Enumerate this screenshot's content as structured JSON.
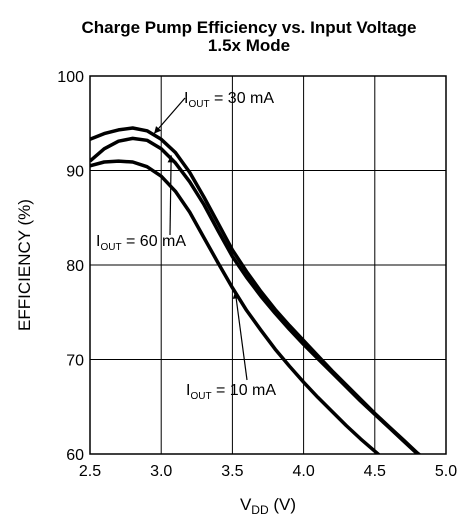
{
  "chart_data": {
    "type": "line",
    "title": "Charge Pump Efficiency vs. Input Voltage",
    "subtitle": "1.5x Mode",
    "xlabel": {
      "main": "V",
      "sub": "DD",
      "unit": " (V)"
    },
    "ylabel": "EFFICIENCY (%)",
    "xlim": [
      2.5,
      5.0
    ],
    "ylim": [
      60,
      100
    ],
    "xticks": [
      "2.5",
      "3.0",
      "3.5",
      "4.0",
      "4.5",
      "5.0"
    ],
    "yticks": [
      "60",
      "70",
      "80",
      "90",
      "100"
    ],
    "xtick_values": [
      2.5,
      3.0,
      3.5,
      4.0,
      4.5,
      5.0
    ],
    "ytick_values": [
      60,
      70,
      80,
      90,
      100
    ],
    "grid": true,
    "series": [
      {
        "name": "I_OUT = 30 mA",
        "x": [
          2.5,
          2.6,
          2.7,
          2.8,
          2.9,
          3.0,
          3.1,
          3.2,
          3.3,
          3.4,
          3.5,
          3.6,
          3.7,
          3.8,
          3.9,
          4.0,
          4.1,
          4.2,
          4.3,
          4.4,
          4.5,
          4.6,
          4.7,
          4.8,
          4.85
        ],
        "y": [
          93.3,
          93.9,
          94.3,
          94.5,
          94.2,
          93.3,
          91.9,
          89.8,
          87.2,
          84.4,
          81.6,
          79.3,
          77.2,
          75.3,
          73.6,
          72.0,
          70.4,
          68.8,
          67.3,
          65.8,
          64.3,
          62.9,
          61.5,
          60.1,
          59.5
        ]
      },
      {
        "name": "I_OUT = 60 mA",
        "x": [
          2.5,
          2.6,
          2.7,
          2.8,
          2.9,
          3.0,
          3.1,
          3.2,
          3.3,
          3.4,
          3.5,
          3.6,
          3.7,
          3.8,
          3.9,
          4.0,
          4.1,
          4.2,
          4.3,
          4.4,
          4.5,
          4.6,
          4.7,
          4.8,
          4.85
        ],
        "y": [
          91.0,
          92.3,
          93.1,
          93.4,
          93.2,
          92.3,
          90.8,
          88.8,
          86.4,
          83.6,
          80.9,
          78.7,
          76.7,
          74.9,
          73.2,
          71.6,
          70.1,
          68.6,
          67.1,
          65.6,
          64.2,
          62.8,
          61.4,
          60.0,
          59.4
        ]
      },
      {
        "name": "I_OUT = 10 mA",
        "x": [
          2.5,
          2.6,
          2.7,
          2.8,
          2.9,
          3.0,
          3.1,
          3.2,
          3.3,
          3.4,
          3.5,
          3.6,
          3.7,
          3.8,
          3.9,
          4.0,
          4.1,
          4.2,
          4.3,
          4.4,
          4.5,
          4.6
        ],
        "y": [
          90.5,
          90.9,
          91.0,
          90.9,
          90.4,
          89.4,
          87.8,
          85.6,
          82.9,
          80.2,
          77.6,
          75.2,
          73.1,
          71.1,
          69.3,
          67.6,
          66.0,
          64.5,
          63.0,
          61.6,
          60.3,
          59.0
        ]
      }
    ],
    "annotations": [
      {
        "main": "I",
        "sub": "OUT",
        "rest": " = 30 mA",
        "series": "I_OUT = 30 mA",
        "target": [
          2.95,
          93.9
        ]
      },
      {
        "main": "I",
        "sub": "OUT",
        "rest": " = 60 mA",
        "series": "I_OUT = 60 mA",
        "target": [
          3.07,
          91.6
        ]
      },
      {
        "main": "I",
        "sub": "OUT",
        "rest": " = 10 mA",
        "series": "I_OUT = 10 mA",
        "target": [
          3.52,
          77.2
        ]
      }
    ]
  }
}
